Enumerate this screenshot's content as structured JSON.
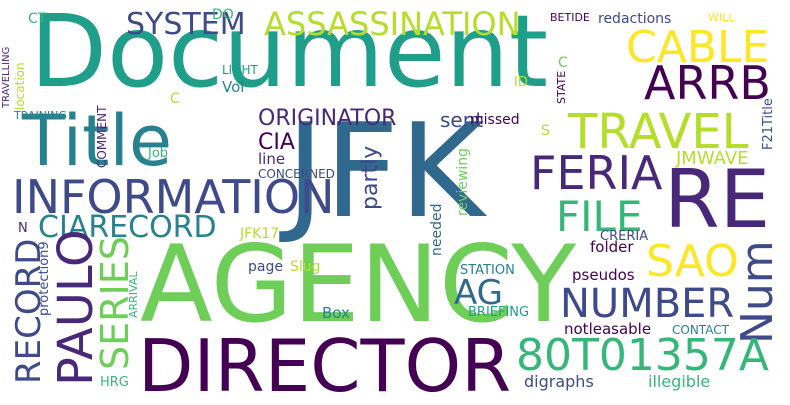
{
  "colors": {
    "background": "#ffffff",
    "palette": [
      "#440154",
      "#482878",
      "#3e4a89",
      "#31688e",
      "#26828e",
      "#1f9e89",
      "#35b779",
      "#6ece58",
      "#b5de2b",
      "#fde725"
    ]
  },
  "words": [
    {
      "text": "Document"
    },
    {
      "text": "JFK"
    },
    {
      "text": "AGENCY"
    },
    {
      "text": "DIRECTOR"
    },
    {
      "text": "RE"
    },
    {
      "text": "Title"
    },
    {
      "text": "INFORMATION"
    },
    {
      "text": "TRAVEL"
    },
    {
      "text": "FERIA"
    },
    {
      "text": "FILE"
    },
    {
      "text": "ARRB"
    },
    {
      "text": "CABLE"
    },
    {
      "text": "SAO"
    },
    {
      "text": "NUMBER"
    },
    {
      "text": "Num"
    },
    {
      "text": "80T01357A"
    },
    {
      "text": "ASSASSINATION"
    },
    {
      "text": "SYSTEM"
    },
    {
      "text": "CIARECORD"
    },
    {
      "text": "ORIGINATOR"
    },
    {
      "text": "PAULO"
    },
    {
      "text": "RECORD"
    },
    {
      "text": "SERIES"
    },
    {
      "text": "AG"
    },
    {
      "text": "CIA"
    },
    {
      "text": "partly"
    },
    {
      "text": "sent"
    },
    {
      "text": "JMWAVE"
    },
    {
      "text": "missed"
    },
    {
      "text": "reviewing"
    },
    {
      "text": "needed"
    },
    {
      "text": "folder"
    },
    {
      "text": "CRERIA"
    },
    {
      "text": "STATION"
    },
    {
      "text": "pseudos"
    },
    {
      "text": "BRIEFING"
    },
    {
      "text": "notleasable"
    },
    {
      "text": "CONTACT"
    },
    {
      "text": "digraphs"
    },
    {
      "text": "illegible"
    },
    {
      "text": "HRG"
    },
    {
      "text": "page"
    },
    {
      "text": "Slug"
    },
    {
      "text": "Box"
    },
    {
      "text": "JFK17"
    },
    {
      "text": "ARRIVAL"
    },
    {
      "text": "protection9"
    },
    {
      "text": "CONCERNED"
    },
    {
      "text": "line"
    },
    {
      "text": "Job"
    },
    {
      "text": "Vol"
    },
    {
      "text": "LIGHT"
    },
    {
      "text": "location"
    },
    {
      "text": "TRAVELLING"
    },
    {
      "text": "TRAINING"
    },
    {
      "text": "COMMENT"
    },
    {
      "text": "BETIDE"
    },
    {
      "text": "redactions"
    },
    {
      "text": "WILL"
    },
    {
      "text": "STATE"
    },
    {
      "text": "F21Title"
    },
    {
      "text": "ID"
    },
    {
      "text": "S"
    },
    {
      "text": "C"
    },
    {
      "text": "C"
    },
    {
      "text": "N"
    },
    {
      "text": "CT"
    },
    {
      "text": "DO"
    }
  ]
}
